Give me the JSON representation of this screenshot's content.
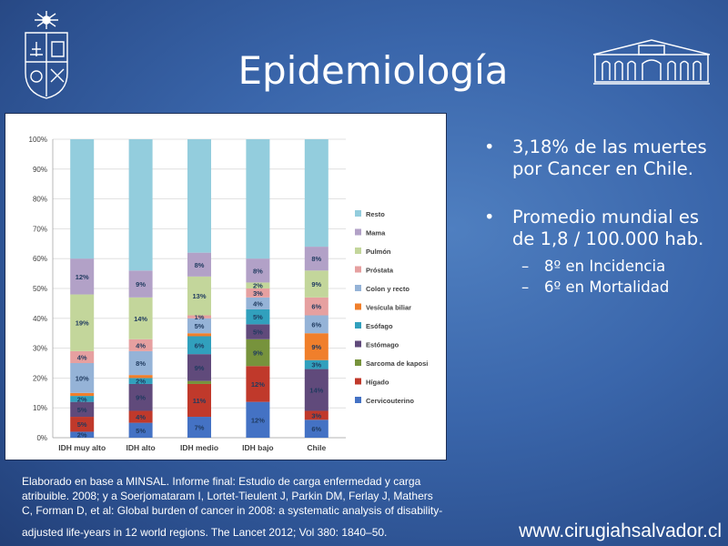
{
  "slide": {
    "title": "Epidemiología",
    "website": "www.cirugiahsalvador.cl"
  },
  "bullets": [
    {
      "text": "3,18% de las muertes por Cancer en Chile.",
      "subs": []
    },
    {
      "text": "Promedio mundial es de 1,8 / 100.000 hab.",
      "subs": [
        "8º en Incidencia",
        "6º en Mortalidad"
      ]
    }
  ],
  "bullet_glyph": "•",
  "sub_glyph": "–",
  "footnote": {
    "line1": "Elaborado en base a MINSAL. Informe final: Estudio de carga enfermedad y carga",
    "line2": "atribuible. 2008; y a Soerjomataram I, Lortet-Tieulent J, Parkin DM, Ferlay J, Mathers",
    "line3": "C, Forman D, et al: Global burden of cancer in 2008: a systematic analysis of disability-",
    "line4": "adjusted life-years in 12 world regions. The Lancet 2012; Vol 380: 1840–50."
  },
  "colors": {
    "background": "#3a66ab",
    "text": "#ffffff"
  },
  "chart_data": {
    "type": "bar",
    "stacked": true,
    "percent": true,
    "categories": [
      "IDH muy alto",
      "IDH alto",
      "IDH medio",
      "IDH bajo",
      "Chile"
    ],
    "y_ticks": [
      "0%",
      "10%",
      "20%",
      "30%",
      "40%",
      "50%",
      "60%",
      "70%",
      "80%",
      "90%",
      "100%"
    ],
    "ylim": [
      0,
      100
    ],
    "legend_position": "right",
    "series": [
      {
        "name": "Cervicouterino",
        "color": "#4472c4",
        "values": [
          2,
          5,
          7,
          12,
          6
        ],
        "labels": [
          "2%",
          "5%",
          "7%",
          "12%",
          "6%"
        ]
      },
      {
        "name": "Hígado",
        "color": "#c0392b",
        "values": [
          5,
          4,
          11,
          12,
          3
        ],
        "labels": [
          "5%",
          "4%",
          "11%",
          "12%",
          "3%"
        ]
      },
      {
        "name": "Sarcoma de kaposi",
        "color": "#77933c",
        "values": [
          0,
          0,
          1,
          9,
          0
        ],
        "labels": [
          "",
          "",
          "",
          "9%",
          ""
        ]
      },
      {
        "name": "Estómago",
        "color": "#604a7b",
        "values": [
          5,
          9,
          9,
          5,
          14
        ],
        "labels": [
          "5%",
          "9%",
          "9%",
          "5%",
          "14%"
        ]
      },
      {
        "name": "Esófago",
        "color": "#31a0bd",
        "values": [
          2,
          2,
          6,
          5,
          3
        ],
        "labels": [
          "2%",
          "2%",
          "6%",
          "5%",
          "3%"
        ]
      },
      {
        "name": "Vesícula biliar",
        "color": "#f07f2b",
        "values": [
          1,
          1,
          1,
          0,
          9
        ],
        "labels": [
          "",
          "",
          "",
          "",
          "9%"
        ]
      },
      {
        "name": "Colon y recto",
        "color": "#95b3d7",
        "values": [
          10,
          8,
          5,
          4,
          6
        ],
        "labels": [
          "10%",
          "8%",
          "5%",
          "4%",
          "6%"
        ]
      },
      {
        "name": "Próstata",
        "color": "#e6a0a0",
        "values": [
          4,
          4,
          1,
          3,
          6
        ],
        "labels": [
          "4%",
          "4%",
          "1%",
          "3%",
          "6%"
        ]
      },
      {
        "name": "Pulmón",
        "color": "#c3d69b",
        "values": [
          19,
          14,
          13,
          2,
          9
        ],
        "labels": [
          "19%",
          "14%",
          "13%",
          "2%",
          "9%"
        ]
      },
      {
        "name": "Mama",
        "color": "#b2a1c7",
        "values": [
          12,
          9,
          8,
          8,
          8
        ],
        "labels": [
          "12%",
          "9%",
          "8%",
          "8%",
          "8%"
        ]
      },
      {
        "name": "Resto",
        "color": "#93cddd",
        "values": [
          40,
          44,
          38,
          40,
          36
        ],
        "labels": [
          "",
          "",
          "",
          "",
          ""
        ]
      }
    ]
  }
}
